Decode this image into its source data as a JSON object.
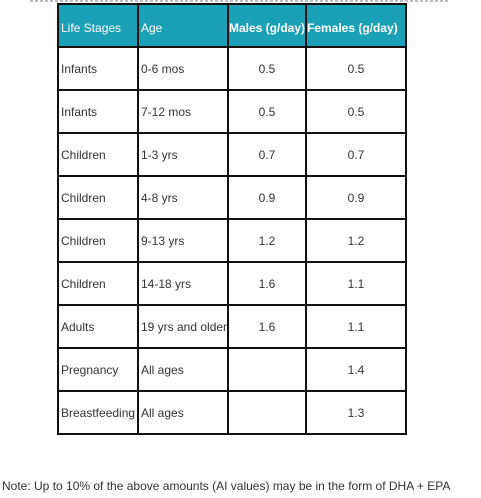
{
  "table": {
    "headers": {
      "life_stages": "Life Stages",
      "age": "Age",
      "males": "Males (g/day)",
      "females": "Females (g/day)"
    },
    "rows": [
      {
        "stage": "Infants",
        "age": "0-6 mos",
        "males": "0.5",
        "females": "0.5"
      },
      {
        "stage": "Infants",
        "age": "7-12 mos",
        "males": "0.5",
        "females": "0.5"
      },
      {
        "stage": "Children",
        "age": "1-3 yrs",
        "males": "0.7",
        "females": "0.7"
      },
      {
        "stage": "Children",
        "age": "4-8 yrs",
        "males": "0.9",
        "females": "0.9"
      },
      {
        "stage": "Children",
        "age": "9-13 yrs",
        "males": "1.2",
        "females": "1.2"
      },
      {
        "stage": "Children",
        "age": "14-18 yrs",
        "males": "1.6",
        "females": "1.1"
      },
      {
        "stage": "Adults",
        "age": "19 yrs and older",
        "males": "1.6",
        "females": "1.1"
      },
      {
        "stage": "Pregnancy",
        "age": "All ages",
        "males": "",
        "females": "1.4"
      },
      {
        "stage": "Breastfeeding",
        "age": "All ages",
        "males": "",
        "females": "1.3"
      }
    ]
  },
  "note": "Note: Up to 10% of the above amounts (AI values) may be in the form of DHA + EPA",
  "colors": {
    "header_background": "#1aa1b8",
    "header_text": "#ffffff",
    "border": "#111111",
    "body_text": "#333333"
  }
}
